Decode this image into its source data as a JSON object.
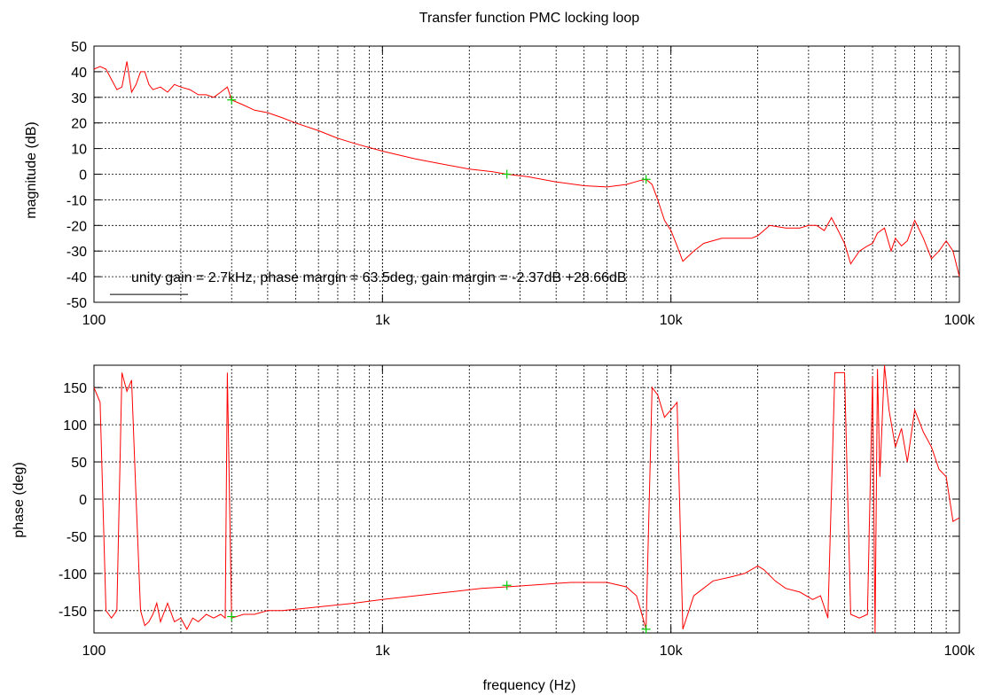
{
  "title": "Transfer function PMC locking loop",
  "xlabel": "frequency (Hz)",
  "colors": {
    "trace": "#ff0000",
    "marker": "#00cc00",
    "grid": "#000000"
  },
  "chart_data": [
    {
      "type": "line",
      "ylabel": "magnitude (dB)",
      "xscale": "log",
      "xlim": [
        100,
        100000
      ],
      "ylim": [
        -50,
        50
      ],
      "x_ticks": [
        100,
        1000,
        10000,
        100000
      ],
      "x_tick_labels": [
        "100",
        "1k",
        "10k",
        "100k"
      ],
      "y_ticks": [
        -50,
        -40,
        -30,
        -20,
        -10,
        0,
        10,
        20,
        30,
        40,
        50
      ],
      "grid": true,
      "legend": "bottom-left",
      "annotation": "unity gain = 2.7kHz, phase margin = 63.5deg, gain margin = -2.37dB +28.66dB",
      "series": [
        {
          "x": [
            100,
            105,
            110,
            115,
            120,
            125,
            130,
            135,
            140,
            145,
            150,
            155,
            160,
            170,
            180,
            190,
            200,
            215,
            230,
            245,
            260,
            275,
            290,
            300,
            330,
            360,
            400,
            450,
            500,
            600,
            700,
            800,
            1000,
            1300,
            1600,
            2000,
            2400,
            2700,
            3200,
            4000,
            5000,
            6000,
            7000,
            7800,
            8200,
            8600,
            9000,
            9500,
            10000,
            10500,
            11000,
            12000,
            13000,
            15000,
            17000,
            19000,
            20000,
            22000,
            25000,
            28000,
            30000,
            32000,
            34000,
            36000,
            38000,
            40000,
            42000,
            45000,
            48000,
            50000,
            52000,
            55000,
            58000,
            60000,
            63000,
            66000,
            70000,
            75000,
            80000,
            85000,
            90000,
            95000,
            100000
          ],
          "y": [
            41,
            42,
            41,
            37,
            33,
            34,
            44,
            32,
            35,
            40,
            40,
            35,
            33,
            34,
            32,
            35,
            34,
            33,
            31,
            31,
            30,
            32,
            34,
            29,
            27,
            25,
            24,
            22,
            20,
            17,
            14,
            12,
            9,
            6,
            4,
            2,
            1,
            0,
            -1,
            -3,
            -4.5,
            -5,
            -4,
            -2.5,
            -2,
            -4,
            -10,
            -18,
            -22,
            -28,
            -34,
            -30,
            -27,
            -25,
            -25,
            -25,
            -24,
            -20,
            -21,
            -21,
            -20,
            -20,
            -22,
            -17,
            -22,
            -27,
            -35,
            -30,
            -28,
            -27,
            -23,
            -21,
            -30,
            -25,
            -28,
            -26,
            -18,
            -25,
            -33,
            -30,
            -26,
            -30,
            -40
          ]
        }
      ],
      "markers": [
        {
          "x": 300,
          "y": 29
        },
        {
          "x": 2700,
          "y": 0
        },
        {
          "x": 8200,
          "y": -2
        }
      ]
    },
    {
      "type": "line",
      "ylabel": "phase (deg)",
      "xscale": "log",
      "xlim": [
        100,
        100000
      ],
      "ylim": [
        -180,
        180
      ],
      "x_ticks": [
        100,
        1000,
        10000,
        100000
      ],
      "x_tick_labels": [
        "100",
        "1k",
        "10k",
        "100k"
      ],
      "y_ticks": [
        -150,
        -100,
        -50,
        0,
        50,
        100,
        150
      ],
      "grid": true,
      "series": [
        {
          "x": [
            100,
            105,
            110,
            115,
            120,
            125,
            130,
            135,
            140,
            145,
            150,
            155,
            160,
            165,
            170,
            180,
            190,
            200,
            210,
            220,
            230,
            245,
            260,
            275,
            285,
            290,
            300,
            330,
            360,
            400,
            450,
            500,
            600,
            800,
            1000,
            1300,
            1700,
            2200,
            2700,
            3500,
            4500,
            6000,
            7000,
            7600,
            8000,
            8200,
            8600,
            9000,
            9500,
            10000,
            10500,
            11000,
            12000,
            14000,
            16000,
            18000,
            20000,
            21000,
            23000,
            25000,
            28000,
            31000,
            33000,
            35000,
            37000,
            40000,
            42000,
            45000,
            48000,
            50000,
            51000,
            52000,
            53000,
            55000,
            57000,
            60000,
            63000,
            66000,
            70000,
            75000,
            80000,
            85000,
            90000,
            95000,
            100000
          ],
          "y": [
            150,
            130,
            -150,
            -160,
            -150,
            170,
            145,
            160,
            0,
            -150,
            -170,
            -165,
            -155,
            -140,
            -165,
            -140,
            -165,
            -160,
            -175,
            -160,
            -165,
            -155,
            -160,
            -155,
            -160,
            170,
            -160,
            -155,
            -155,
            -150,
            -150,
            -148,
            -145,
            -140,
            -135,
            -130,
            -125,
            -120,
            -118,
            -115,
            -112,
            -112,
            -118,
            -130,
            -160,
            -175,
            150,
            140,
            110,
            120,
            130,
            -175,
            -130,
            -110,
            -105,
            -100,
            -90,
            -95,
            -110,
            -120,
            -125,
            -135,
            -130,
            -160,
            170,
            170,
            -155,
            -160,
            -155,
            165,
            -180,
            175,
            30,
            180,
            120,
            70,
            95,
            50,
            120,
            90,
            70,
            40,
            30,
            -30,
            -25
          ]
        }
      ],
      "markers": [
        {
          "x": 300,
          "y": -158
        },
        {
          "x": 2700,
          "y": -116
        },
        {
          "x": 8200,
          "y": -175
        }
      ]
    }
  ]
}
